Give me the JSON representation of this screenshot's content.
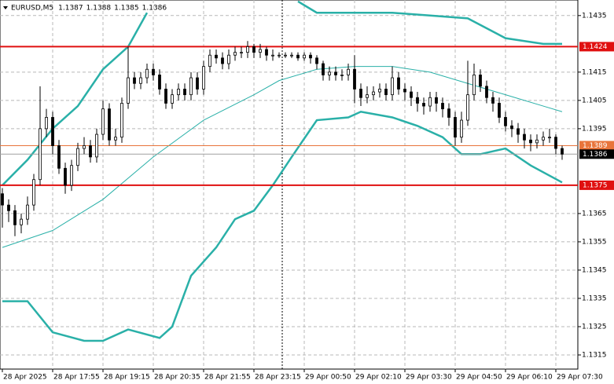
{
  "chart_data": {
    "type": "candlestick",
    "title": "EURUSD,M5",
    "title_ohlc": [
      1.1387,
      1.1388,
      1.1385,
      1.1386
    ],
    "categories": [
      "28 Apr 2025",
      "28 Apr 17:55",
      "28 Apr 19:15",
      "28 Apr 20:35",
      "28 Apr 21:55",
      "28 Apr 23:15",
      "29 Apr 00:50",
      "29 Apr 02:10",
      "29 Apr 03:30",
      "29 Apr 04:50",
      "29 Apr 06:10",
      "29 Apr 07:30"
    ],
    "open": [
      1.1372,
      1.1368,
      1.1366,
      1.1361,
      1.1363,
      1.1368,
      1.1377,
      1.1395,
      1.1399,
      1.1389,
      1.1381,
      1.1375,
      1.1382,
      1.1388,
      1.1389,
      1.1385,
      1.1393,
      1.1402,
      1.1391,
      1.1392,
      1.1404,
      1.1413,
      1.1411,
      1.1413,
      1.1416,
      1.1414,
      1.1409,
      1.1404,
      1.1407,
      1.1409,
      1.1407,
      1.1413,
      1.1409,
      1.1417,
      1.1421,
      1.142,
      1.1418,
      1.1421,
      1.1422,
      1.1422,
      1.1424,
      1.1422,
      1.1423,
      1.1421,
      1.1421,
      1.1421,
      1.1421,
      1.1421,
      1.142,
      1.1421,
      1.142,
      1.1418,
      1.1414,
      1.1415,
      1.1414,
      1.1414,
      1.1416,
      1.1409,
      1.1406,
      1.1407,
      1.1408,
      1.1409,
      1.1407,
      1.1413,
      1.1409,
      1.1408,
      1.1406,
      1.1404,
      1.1403,
      1.1406,
      1.1404,
      1.1402,
      1.1399,
      1.1392,
      1.1398,
      1.1407,
      1.1414,
      1.141,
      1.1406,
      1.1404,
      1.1399,
      1.1396,
      1.1395,
      1.1393,
      1.1391,
      1.139,
      1.1391,
      1.1392,
      1.1392,
      1.1388
    ],
    "high": [
      1.1374,
      1.137,
      1.1368,
      1.1365,
      1.1371,
      1.1379,
      1.141,
      1.1402,
      1.1401,
      1.1391,
      1.1383,
      1.1384,
      1.139,
      1.1392,
      1.1391,
      1.1395,
      1.1405,
      1.1404,
      1.1395,
      1.1406,
      1.1424,
      1.1415,
      1.1415,
      1.1418,
      1.1418,
      1.1416,
      1.1411,
      1.1409,
      1.1411,
      1.1411,
      1.1415,
      1.1415,
      1.1419,
      1.1423,
      1.1423,
      1.1422,
      1.1423,
      1.1424,
      1.1424,
      1.1426,
      1.1425,
      1.1425,
      1.1424,
      1.1423,
      1.1422,
      1.1422,
      1.1422,
      1.1422,
      1.1422,
      1.1422,
      1.1421,
      1.1419,
      1.1417,
      1.1417,
      1.1416,
      1.1418,
      1.1421,
      1.1411,
      1.141,
      1.141,
      1.1411,
      1.1411,
      1.1417,
      1.1415,
      1.1411,
      1.141,
      1.1408,
      1.1406,
      1.1408,
      1.1408,
      1.1406,
      1.1404,
      1.1401,
      1.1401,
      1.1419,
      1.1418,
      1.1416,
      1.1412,
      1.1408,
      1.1406,
      1.1401,
      1.1398,
      1.1397,
      1.1395,
      1.1393,
      1.1393,
      1.1394,
      1.1395,
      1.1393,
      1.1389
    ],
    "low": [
      1.136,
      1.1362,
      1.1357,
      1.1358,
      1.1361,
      1.1366,
      1.1375,
      1.1392,
      1.1386,
      1.1379,
      1.1372,
      1.1373,
      1.138,
      1.1386,
      1.1383,
      1.1383,
      1.1391,
      1.1389,
      1.1389,
      1.139,
      1.1402,
      1.1409,
      1.1409,
      1.1411,
      1.1412,
      1.1407,
      1.1402,
      1.1402,
      1.1405,
      1.1405,
      1.1405,
      1.1407,
      1.1407,
      1.1415,
      1.1418,
      1.1416,
      1.1416,
      1.1419,
      1.142,
      1.142,
      1.142,
      1.142,
      1.1419,
      1.1419,
      1.142,
      1.142,
      1.142,
      1.1419,
      1.1419,
      1.1418,
      1.1416,
      1.1412,
      1.1412,
      1.1412,
      1.1412,
      1.1412,
      1.1404,
      1.1403,
      1.1404,
      1.1405,
      1.1406,
      1.1405,
      1.1405,
      1.1407,
      1.1405,
      1.1403,
      1.1401,
      1.14,
      1.1401,
      1.1401,
      1.1399,
      1.1396,
      1.1389,
      1.139,
      1.1396,
      1.1405,
      1.1408,
      1.1404,
      1.1401,
      1.1397,
      1.1394,
      1.1392,
      1.139,
      1.1388,
      1.1387,
      1.1388,
      1.1389,
      1.139,
      1.1386,
      1.1384
    ],
    "close": [
      1.1368,
      1.1366,
      1.1361,
      1.1363,
      1.1368,
      1.1377,
      1.1395,
      1.1399,
      1.1389,
      1.1381,
      1.1375,
      1.1382,
      1.1388,
      1.1389,
      1.1385,
      1.1393,
      1.1402,
      1.1391,
      1.1392,
      1.1404,
      1.1413,
      1.1411,
      1.1413,
      1.1416,
      1.1414,
      1.1409,
      1.1404,
      1.1407,
      1.1409,
      1.1407,
      1.1413,
      1.1409,
      1.1417,
      1.1421,
      1.142,
      1.1418,
      1.1421,
      1.1422,
      1.1422,
      1.1424,
      1.1422,
      1.1423,
      1.1421,
      1.1421,
      1.1421,
      1.1421,
      1.1421,
      1.142,
      1.1421,
      1.142,
      1.1418,
      1.1414,
      1.1415,
      1.1414,
      1.1414,
      1.1416,
      1.1409,
      1.1406,
      1.1407,
      1.1408,
      1.1409,
      1.1407,
      1.1413,
      1.1409,
      1.1408,
      1.1406,
      1.1404,
      1.1403,
      1.1406,
      1.1404,
      1.1402,
      1.1399,
      1.1392,
      1.1398,
      1.1407,
      1.1414,
      1.141,
      1.1406,
      1.1404,
      1.1399,
      1.1396,
      1.1395,
      1.1393,
      1.1391,
      1.139,
      1.1391,
      1.1392,
      1.1392,
      1.1388,
      1.1386
    ],
    "series": [
      {
        "color": "#2ab0a8",
        "x": [
          0,
          4,
          8,
          12,
          16,
          20,
          23,
          24,
          47,
          50,
          56,
          62,
          68,
          74,
          80,
          86,
          89
        ],
        "values": [
          1.1375,
          1.1384,
          1.1395,
          1.1403,
          1.1416,
          1.1424,
          1.1436,
          null,
          1.144,
          1.1436,
          1.1436,
          1.1436,
          1.1435,
          1.1434,
          1.1427,
          1.1425,
          1.1425
        ]
      },
      {
        "color": "#2ab0a8",
        "x": [
          0,
          8,
          16,
          24,
          32,
          40,
          44,
          50,
          56,
          62,
          68,
          74,
          80,
          86,
          89
        ],
        "values": [
          1.1353,
          1.1359,
          1.137,
          1.1385,
          1.1398,
          1.1407,
          1.1412,
          1.1416,
          1.1417,
          1.1417,
          1.1415,
          1.1411,
          1.1407,
          1.1403,
          1.1401
        ]
      },
      {
        "color": "#2ab0a8",
        "x": [
          0,
          4,
          8,
          13,
          16,
          20,
          25,
          27,
          30,
          34,
          37,
          40,
          43,
          46,
          50,
          55,
          57,
          62,
          66,
          70,
          73,
          76,
          80,
          84,
          89
        ],
        "values": [
          1.1334,
          1.1334,
          1.1323,
          1.132,
          1.132,
          1.1324,
          1.1321,
          1.1325,
          1.1343,
          1.1353,
          1.1363,
          1.1366,
          1.1375,
          1.1385,
          1.1398,
          1.1399,
          1.1401,
          1.1399,
          1.1396,
          1.1392,
          1.1386,
          1.1386,
          1.1388,
          1.1382,
          1.1376
        ]
      }
    ],
    "levels": [
      {
        "value": 1.1424,
        "color": "#e01010"
      },
      {
        "value": 1.1389,
        "color": "#e8743b"
      },
      {
        "value": 1.1386,
        "color": "#000000"
      },
      {
        "value": 1.1375,
        "color": "#e01010"
      }
    ],
    "ylim": [
      1.131,
      1.14405
    ],
    "yticks": [
      1.1435,
      1.1415,
      1.1405,
      1.1395,
      1.1365,
      1.1355,
      1.1345,
      1.1335,
      1.1325,
      1.1315
    ],
    "grid": true
  }
}
